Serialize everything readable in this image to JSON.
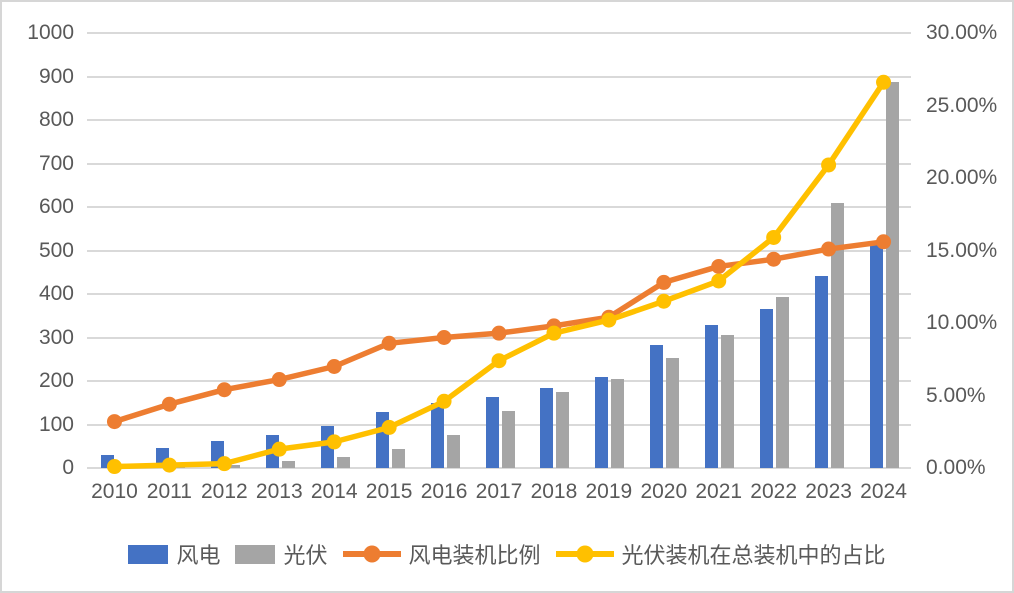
{
  "chart_data": {
    "type": "bar+line combo",
    "title": "",
    "categories": [
      "2010",
      "2011",
      "2012",
      "2013",
      "2014",
      "2015",
      "2016",
      "2017",
      "2018",
      "2019",
      "2020",
      "2021",
      "2022",
      "2023",
      "2024"
    ],
    "series": [
      {
        "key": "wind",
        "name": "风电",
        "type": "bar",
        "axis": "left",
        "color_key": "wind_bar",
        "values": [
          31,
          46,
          61,
          76,
          96,
          129,
          149,
          164,
          184,
          210,
          282,
          328,
          365,
          441,
          521
        ]
      },
      {
        "key": "solar",
        "name": "光伏",
        "type": "bar",
        "axis": "left",
        "color_key": "solar_bar",
        "values": [
          1,
          3,
          7,
          15,
          25,
          43,
          77,
          130,
          174,
          204,
          253,
          306,
          392,
          609,
          887
        ]
      },
      {
        "key": "wind-share",
        "name": "风电装机比例",
        "type": "line",
        "axis": "right",
        "color_key": "wind_line",
        "values": [
          3.2,
          4.4,
          5.4,
          6.1,
          7.0,
          8.6,
          9.0,
          9.3,
          9.8,
          10.4,
          12.8,
          13.9,
          14.4,
          15.1,
          15.6
        ]
      },
      {
        "key": "solar-share",
        "name": "光伏装机在总装机中的占比",
        "type": "line",
        "axis": "right",
        "color_key": "solar_line",
        "values": [
          0.1,
          0.2,
          0.3,
          1.3,
          1.8,
          2.8,
          4.6,
          7.4,
          9.3,
          10.2,
          11.5,
          12.9,
          15.9,
          20.9,
          26.6
        ]
      }
    ],
    "left_axis": {
      "min": 0,
      "max": 1000,
      "step": 100,
      "tick_labels": [
        "1000",
        "900",
        "800",
        "700",
        "600",
        "500",
        "400",
        "300",
        "200",
        "100",
        "0"
      ]
    },
    "right_axis": {
      "min": 0,
      "max": 30,
      "step": 5,
      "tick_labels": [
        "30.00%",
        "25.00%",
        "20.00%",
        "15.00%",
        "10.00%",
        "5.00%",
        "0.00%"
      ]
    },
    "grid": true,
    "legend_position": "bottom"
  },
  "colors": {
    "wind_bar": "#4472C4",
    "solar_bar": "#A5A5A5",
    "wind_line": "#ED7D31",
    "solar_line": "#FFC000",
    "gridline": "#D9D9D9",
    "axis_text": "#595959",
    "legend_text": "#595959",
    "border": "#D6D6D6",
    "background": "#FFFFFF"
  }
}
